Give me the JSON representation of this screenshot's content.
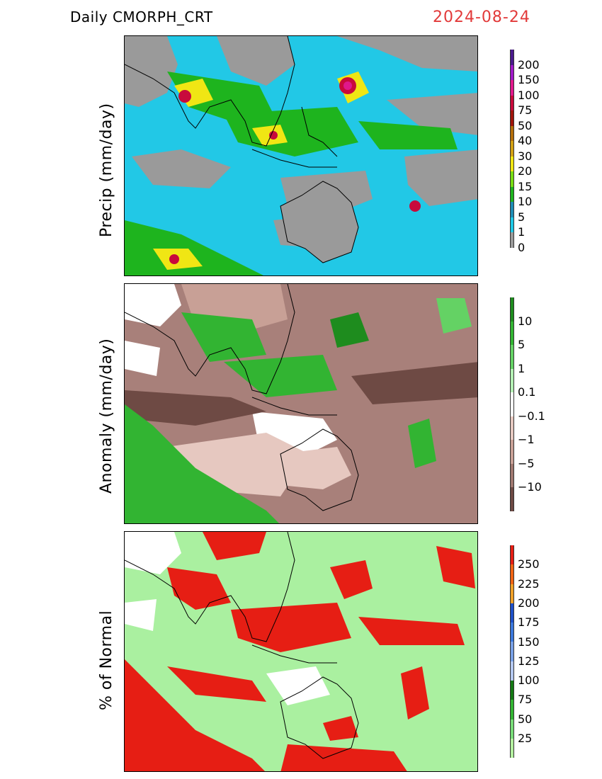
{
  "header": {
    "product": "Daily  CMORPH_CRT",
    "date": "2024-08-24"
  },
  "panels": [
    {
      "ylabel": "Precip (mm/day)",
      "colorbar": {
        "labels": [
          "200",
          "150",
          "100",
          "75",
          "50",
          "40",
          "30",
          "20",
          "15",
          "10",
          "5",
          "1",
          "0"
        ],
        "colors": [
          "#4a1a8c",
          "#a01ac8",
          "#e0188c",
          "#c80a3c",
          "#a0140a",
          "#b46e0a",
          "#d2a014",
          "#f0e614",
          "#78dc14",
          "#1eb41e",
          "#1e8cb4",
          "#1ec8e6",
          "#9a9a9a"
        ]
      },
      "colors": {
        "background": "#22c8e6"
      }
    },
    {
      "ylabel": "Anomaly (mm/day)",
      "colorbar": {
        "labels": [
          "10",
          "5",
          "1",
          "0.1",
          "−0.1",
          "−1",
          "−5",
          "−10"
        ],
        "colors": [
          "#1e8c1e",
          "#32b432",
          "#64d264",
          "#b4f0b4",
          "#ffffff",
          "#e6c8c0",
          "#c8a096",
          "#a07870",
          "#6e4a44"
        ]
      },
      "colors": {
        "background": "#a8807a"
      }
    },
    {
      "ylabel": "% of Normal",
      "colorbar": {
        "labels": [
          "250",
          "225",
          "200",
          "175",
          "150",
          "125",
          "100",
          "75",
          "50",
          "25"
        ],
        "colors": [
          "#e61e14",
          "#f06414",
          "#f0a028",
          "#1e50c8",
          "#3c78dc",
          "#78a0e6",
          "#b4c8f0",
          "#147814",
          "#32b432",
          "#78dc78",
          "#b4f0a0"
        ]
      },
      "colors": {
        "background": "#aaf0a0"
      }
    }
  ]
}
